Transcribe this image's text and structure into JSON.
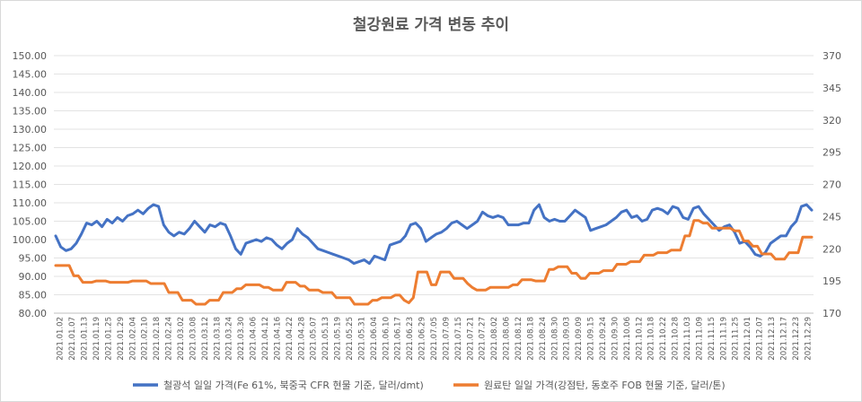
{
  "chart_data": {
    "type": "line",
    "title": "철강원료 가격 변동 추이",
    "y_left": {
      "min": 80,
      "max": 150,
      "step": 5,
      "decimals": 2
    },
    "y_right": {
      "min": 170,
      "max": 370,
      "step": 25,
      "decimals": 0
    },
    "x_range": [
      "2021.01.02",
      "2021.12.30"
    ],
    "x_tick_labels": [
      "2021.01.02",
      "2021.01.07",
      "2021.01.13",
      "2021.01.19",
      "2021.01.25",
      "2021.01.29",
      "2021.02.04",
      "2021.02.10",
      "2021.02.18",
      "2021.02.24",
      "2021.03.02",
      "2021.03.08",
      "2021.03.12",
      "2021.03.18",
      "2021.03.24",
      "2021.03.30",
      "2021.04.06",
      "2021.04.12",
      "2021.04.16",
      "2021.04.22",
      "2021.04.28",
      "2021.05.07",
      "2021.05.13",
      "2021.05.19",
      "2021.05.25",
      "2021.05.31",
      "2021.06.04",
      "2021.06.10",
      "2021.06.17",
      "2021.06.23",
      "2021.06.29",
      "2021.07.05",
      "2021.07.09",
      "2021.07.15",
      "2021.07.21",
      "2021.07.27",
      "2021.08.02",
      "2021.08.06",
      "2021.08.12",
      "2021.08.18",
      "2021.08.24",
      "2021.08.30",
      "2021.09.03",
      "2021.09.09",
      "2021.09.15",
      "2021.09.24",
      "2021.09.30",
      "2021.10.06",
      "2021.10.12",
      "2021.10.18",
      "2021.10.22",
      "2021.10.28",
      "2021.11.03",
      "2021.11.09",
      "2021.11.15",
      "2021.11.19",
      "2021.11.25",
      "2021.12.01",
      "2021.12.07",
      "2021.12.13",
      "2021.12.17",
      "2021.12.23",
      "2021.12.29"
    ],
    "series": [
      {
        "name": "철광석 일일 가격(Fe 61%, 북중국 CFR 현물 기준, 달러/dmt)",
        "color": "#4472c4",
        "axis": "left",
        "values": [
          101,
          98,
          97,
          97.5,
          99,
          101.5,
          104.5,
          104,
          105,
          103.5,
          105.5,
          104.5,
          106,
          105,
          106.5,
          107,
          108,
          107,
          108.5,
          109.5,
          109,
          104,
          102,
          101,
          102,
          101.5,
          103,
          105,
          103.5,
          102,
          104,
          103.5,
          104.5,
          104,
          101,
          97.5,
          96,
          99,
          99.5,
          100,
          99.5,
          100.5,
          100,
          98.5,
          97.5,
          99,
          100,
          103,
          101.5,
          100.5,
          99,
          97.5,
          97,
          96.5,
          96,
          95.5,
          95,
          94.5,
          93.5,
          94,
          94.5,
          93.5,
          95.5,
          95,
          94.5,
          98.5,
          99,
          99.5,
          101,
          104,
          104.5,
          103,
          99.5,
          100.5,
          101.5,
          102,
          103,
          104.5,
          105,
          104,
          103,
          104,
          105,
          107.5,
          106.5,
          106,
          106.5,
          106,
          104,
          104,
          104,
          104.5,
          104.5,
          108,
          109.5,
          106,
          105,
          105.5,
          105,
          105,
          106.5,
          108,
          107,
          106,
          102.5,
          103,
          103.5,
          104,
          105,
          106,
          107.5,
          108,
          106,
          106.5,
          105,
          105.5,
          108,
          108.5,
          108,
          107,
          109,
          108.5,
          106,
          105.5,
          108.5,
          109,
          107,
          105.5,
          104,
          102.5,
          103.5,
          104,
          102,
          99,
          99.5,
          98,
          96,
          95.5,
          96.5,
          99,
          100,
          101,
          101,
          103.5,
          105,
          109,
          109.5,
          108
        ]
      },
      {
        "name": "원료탄 일일 가격(강점탄, 동호주 FOB 현물 기준, 달러/톤)",
        "color": "#ed7d31",
        "axis": "right",
        "values": [
          207,
          207,
          207,
          207,
          199,
          199,
          194,
          194,
          194,
          195,
          195,
          195,
          194,
          194,
          194,
          194,
          194,
          195,
          195,
          195,
          195,
          193,
          193,
          193,
          193,
          186,
          186,
          186,
          180,
          180,
          180,
          177,
          177,
          177,
          180,
          180,
          180,
          186,
          186,
          186,
          189,
          189,
          192,
          192,
          192,
          192,
          190,
          190,
          188,
          188,
          188,
          194,
          194,
          194,
          191,
          191,
          188,
          188,
          188,
          186,
          186,
          186,
          182,
          182,
          182,
          182,
          177,
          177,
          177,
          177,
          180,
          180,
          182,
          182,
          182,
          184,
          184,
          180,
          178,
          182,
          202,
          202,
          202,
          192,
          192,
          202,
          202,
          202,
          197,
          197,
          197,
          193,
          190,
          188,
          188,
          188,
          190,
          190,
          190,
          190,
          190,
          192,
          192,
          196,
          196,
          196,
          195,
          195,
          195,
          204,
          204,
          206,
          206,
          206,
          201,
          201,
          197,
          197,
          201,
          201,
          201,
          203,
          203,
          203,
          208,
          208,
          208,
          210,
          210,
          210,
          215,
          215,
          215,
          217,
          217,
          217,
          219,
          219,
          219,
          230,
          230,
          242,
          242,
          240,
          240,
          236,
          236,
          236,
          236,
          236,
          234,
          234,
          226,
          226,
          222,
          222,
          216,
          216,
          216,
          212,
          212,
          212,
          217,
          217,
          217,
          229,
          229,
          229
        ]
      }
    ],
    "legend_position": "bottom",
    "grid": true
  }
}
